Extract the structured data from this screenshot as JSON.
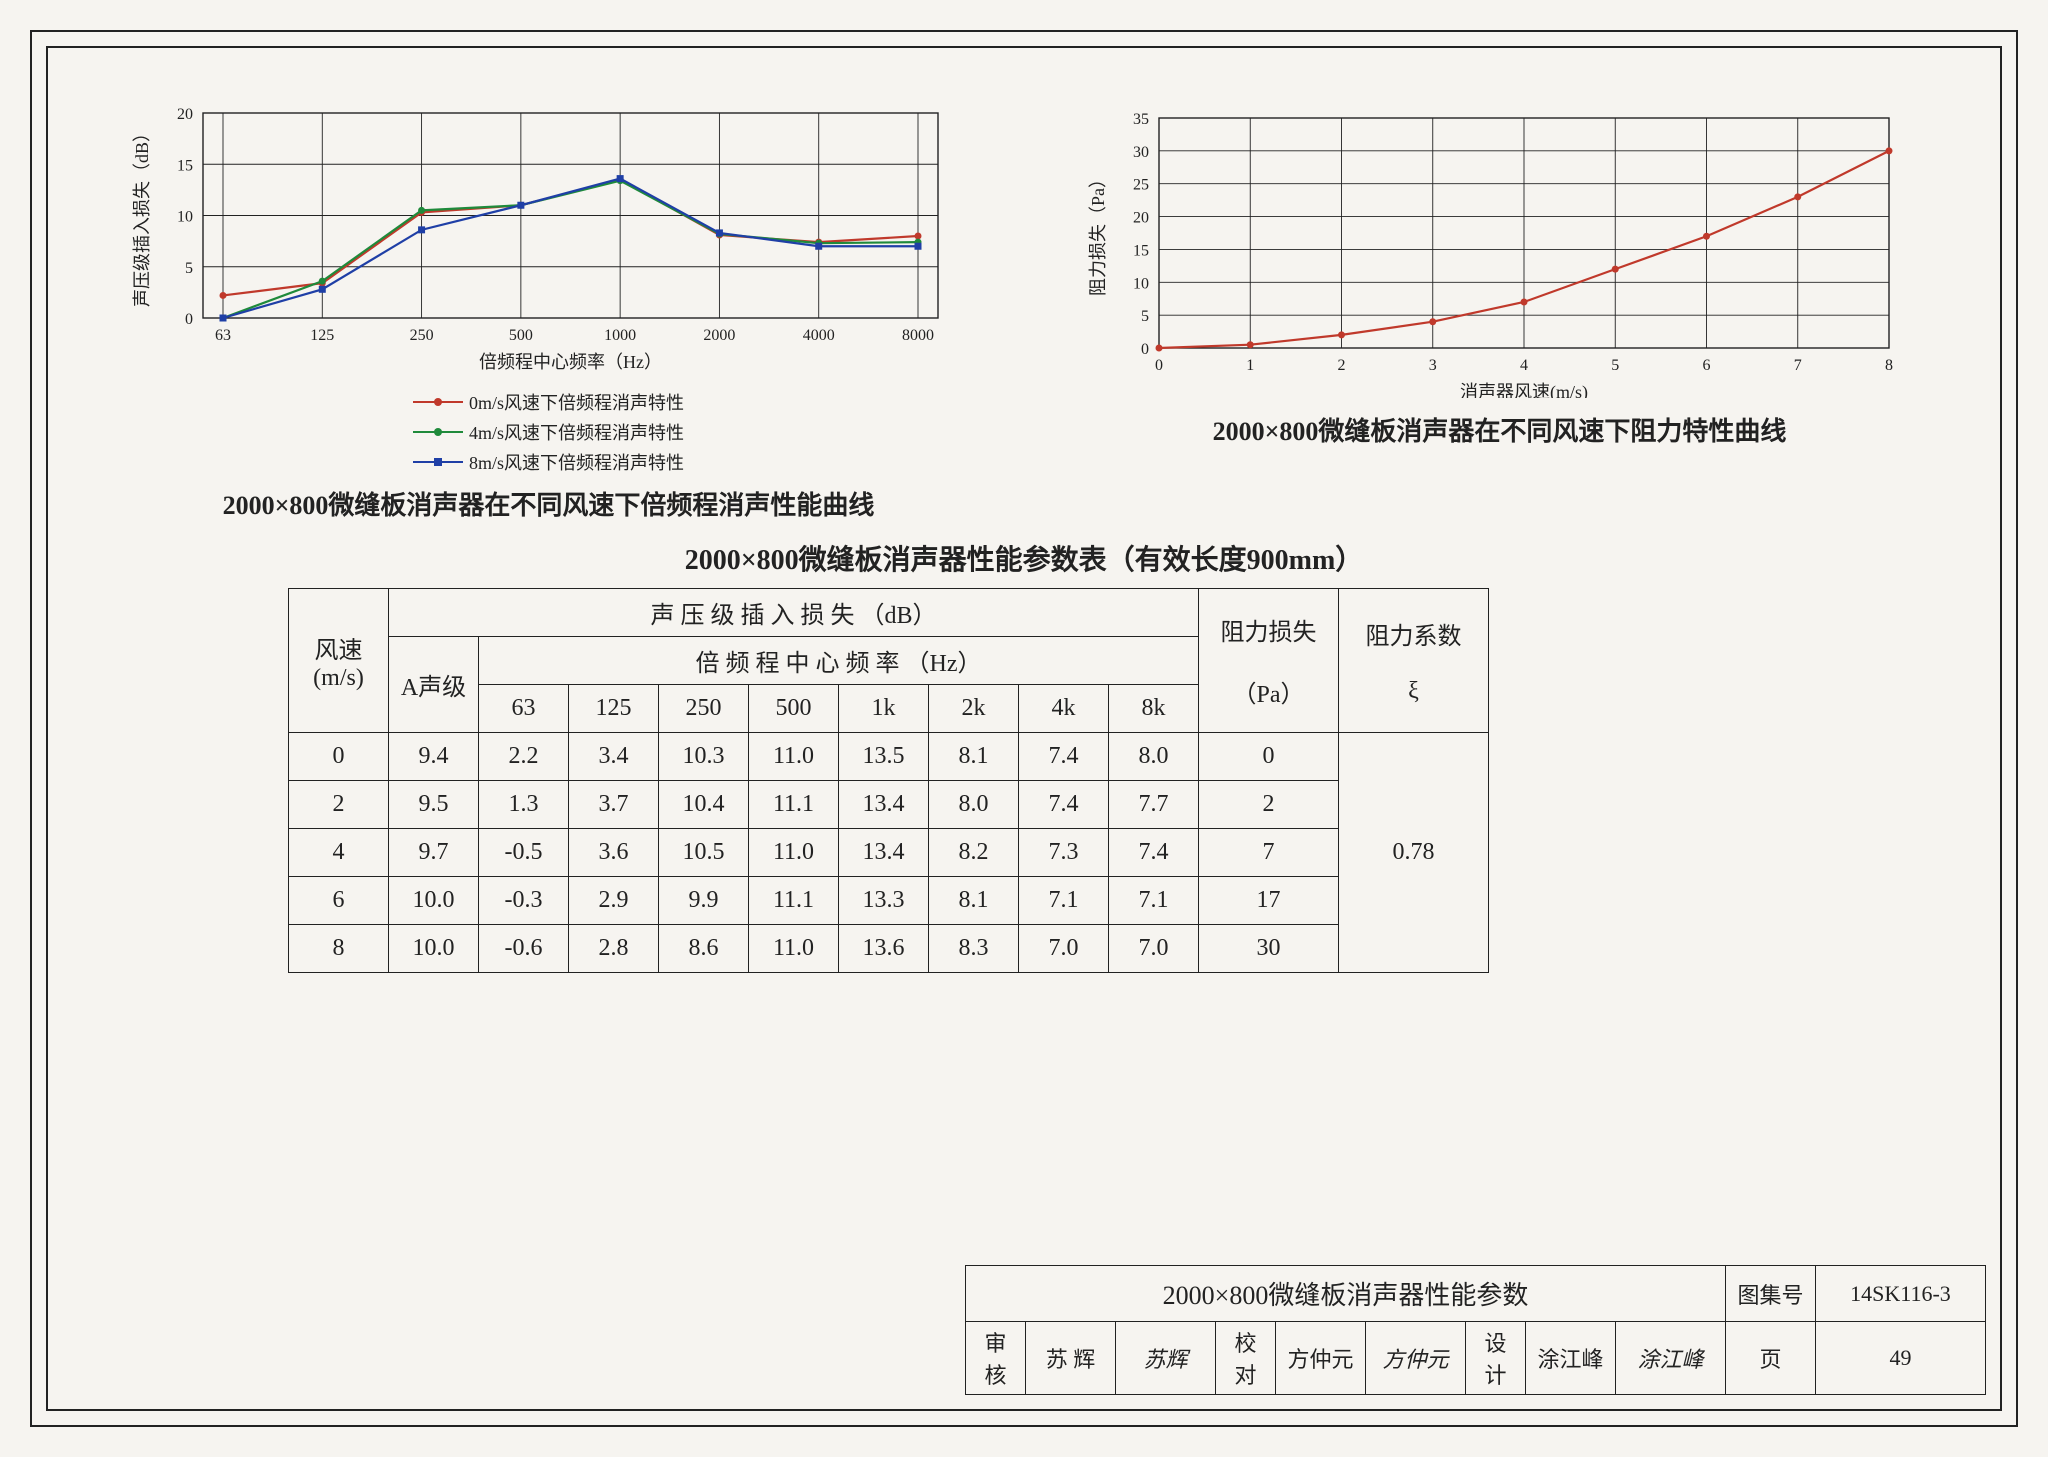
{
  "chart1": {
    "type": "line",
    "xlabel": "倍频程中心频率（Hz）",
    "ylabel": "声压级插入损失（dB）",
    "x_categories": [
      "63",
      "125",
      "250",
      "500",
      "1000",
      "2000",
      "4000",
      "8000"
    ],
    "ylim": [
      0,
      20
    ],
    "ytick_step": 5,
    "grid_color": "#222222",
    "background_color": "#f6f4f0",
    "series": [
      {
        "label": "0m/s风速下倍频程消声特性",
        "color": "#c0392b",
        "marker": "circle",
        "values": [
          2.2,
          3.4,
          10.3,
          11.0,
          13.5,
          8.1,
          7.4,
          8.0
        ]
      },
      {
        "label": "4m/s风速下倍频程消声特性",
        "color": "#1f8a3b",
        "marker": "circle",
        "values": [
          -0.5,
          3.6,
          10.5,
          11.0,
          13.4,
          8.2,
          7.3,
          7.4
        ]
      },
      {
        "label": "8m/s风速下倍频程消声特性",
        "color": "#1f3fa6",
        "marker": "square",
        "values": [
          -0.6,
          2.8,
          8.6,
          11.0,
          13.6,
          8.3,
          7.0,
          7.0
        ]
      }
    ],
    "line_width": 2.2,
    "marker_size": 7
  },
  "chart2": {
    "type": "line",
    "xlabel": "消声器风速(m/s)",
    "ylabel": "阻力损失（Pa）",
    "x_values": [
      0,
      1,
      2,
      3,
      4,
      5,
      6,
      7,
      8
    ],
    "xlim": [
      0,
      8
    ],
    "ylim": [
      0,
      35
    ],
    "ytick_step": 5,
    "xtick_step": 1,
    "grid_color": "#222222",
    "series": [
      {
        "color": "#c0392b",
        "marker": "circle",
        "values": [
          0,
          0.5,
          2,
          4,
          7,
          12,
          17,
          23,
          30
        ]
      }
    ],
    "line_width": 2.2,
    "marker_size": 7
  },
  "titles": {
    "chart1": "2000×800微缝板消声器在不同风速下倍频程消声性能曲线",
    "chart2": "2000×800微缝板消声器在不同风速下阻力特性曲线",
    "table": "2000×800微缝板消声器性能参数表（有效长度900mm）"
  },
  "table": {
    "col_wind": "风速",
    "col_wind_unit": "(m/s)",
    "col_spl": "声 压 级 插 入 损 失 （dB）",
    "col_oct": "倍 频 程 中 心 频 率 （Hz）",
    "col_a": "A声级",
    "freq_labels": [
      "63",
      "125",
      "250",
      "500",
      "1k",
      "2k",
      "4k",
      "8k"
    ],
    "col_dp": "阻力损失",
    "col_dp_unit": "（Pa）",
    "col_xi": "阻力系数",
    "col_xi_sym": "ξ",
    "rows": [
      {
        "ws": "0",
        "a": "9.4",
        "f": [
          "2.2",
          "3.4",
          "10.3",
          "11.0",
          "13.5",
          "8.1",
          "7.4",
          "8.0"
        ],
        "dp": "0"
      },
      {
        "ws": "2",
        "a": "9.5",
        "f": [
          "1.3",
          "3.7",
          "10.4",
          "11.1",
          "13.4",
          "8.0",
          "7.4",
          "7.7"
        ],
        "dp": "2"
      },
      {
        "ws": "4",
        "a": "9.7",
        "f": [
          "-0.5",
          "3.6",
          "10.5",
          "11.0",
          "13.4",
          "8.2",
          "7.3",
          "7.4"
        ],
        "dp": "7"
      },
      {
        "ws": "6",
        "a": "10.0",
        "f": [
          "-0.3",
          "2.9",
          "9.9",
          "11.1",
          "13.3",
          "8.1",
          "7.1",
          "7.1"
        ],
        "dp": "17"
      },
      {
        "ws": "8",
        "a": "10.0",
        "f": [
          "-0.6",
          "2.8",
          "8.6",
          "11.0",
          "13.6",
          "8.3",
          "7.0",
          "7.0"
        ],
        "dp": "30"
      }
    ],
    "xi": "0.78"
  },
  "titleblock": {
    "main": "2000×800微缝板消声器性能参数",
    "tuji_label": "图集号",
    "tuji_val": "14SK116-3",
    "shenhe": "审核",
    "shenhe_name": "苏 辉",
    "shenhe_sig": "苏辉",
    "jiaodui": "校对",
    "jiaodui_name": "方仲元",
    "jiaodui_sig": "方仲元",
    "sheji": "设计",
    "sheji_name": "涂江峰",
    "sheji_sig": "涂江峰",
    "ye": "页",
    "ye_val": "49"
  }
}
